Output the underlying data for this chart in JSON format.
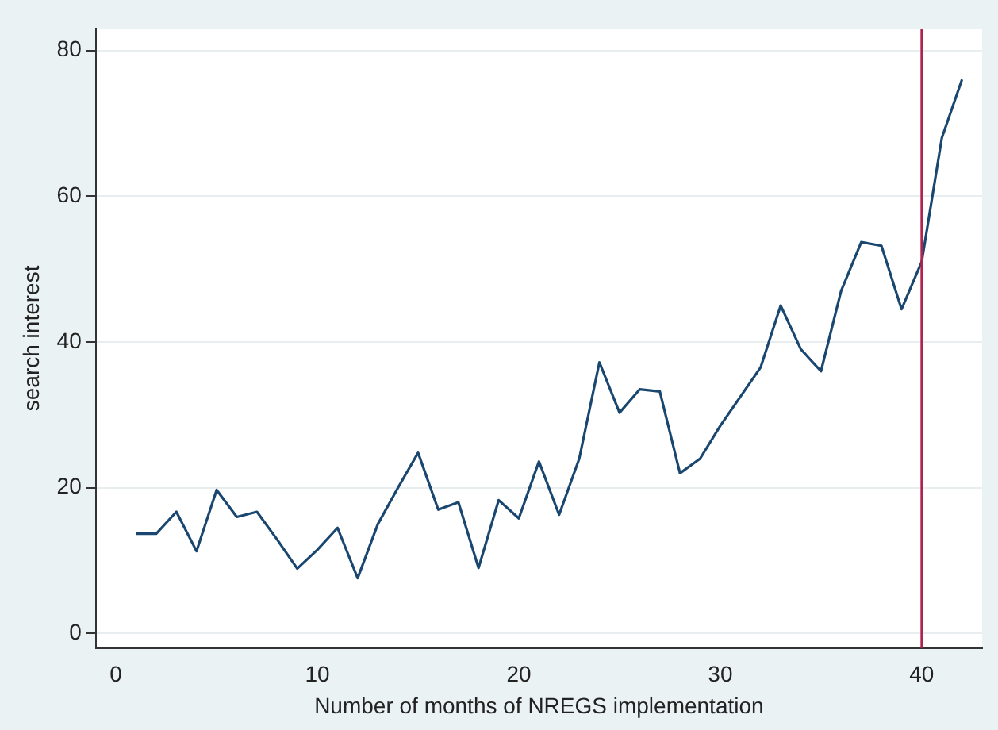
{
  "chart_data": {
    "type": "line",
    "xlabel": "Number of months of NREGS implementation",
    "ylabel": "search interest",
    "x": [
      1,
      2,
      3,
      4,
      5,
      6,
      7,
      8,
      9,
      10,
      11,
      12,
      13,
      14,
      15,
      16,
      17,
      18,
      19,
      20,
      21,
      22,
      23,
      24,
      25,
      26,
      27,
      28,
      29,
      30,
      31,
      32,
      33,
      34,
      35,
      36,
      37,
      38,
      39,
      40,
      41,
      42
    ],
    "series": [
      {
        "color": "#1a476f",
        "values": [
          13.7,
          13.7,
          16.7,
          11.3,
          19.7,
          16,
          16.7,
          12.9,
          8.9,
          11.5,
          14.5,
          7.6,
          15,
          20,
          24.8,
          17,
          18,
          9,
          18.3,
          15.8,
          23.6,
          16.3,
          24,
          37.2,
          30.3,
          33.5,
          33.2,
          22,
          24,
          28.5,
          32.5,
          36.5,
          45,
          39,
          36,
          47,
          53.7,
          53.2,
          44.5,
          51,
          68,
          76
        ]
      }
    ],
    "xlim": [
      -1,
      43
    ],
    "xticks": [
      0,
      10,
      20,
      30,
      40
    ],
    "ylim": [
      -2,
      83
    ],
    "yticks": [
      0,
      20,
      40,
      60,
      80
    ],
    "grid": "y",
    "legend": false,
    "marker": "none",
    "line_style": "solid",
    "ref_lines": [
      {
        "axis": "x",
        "value": 40,
        "color": "#b2224e"
      }
    ]
  }
}
